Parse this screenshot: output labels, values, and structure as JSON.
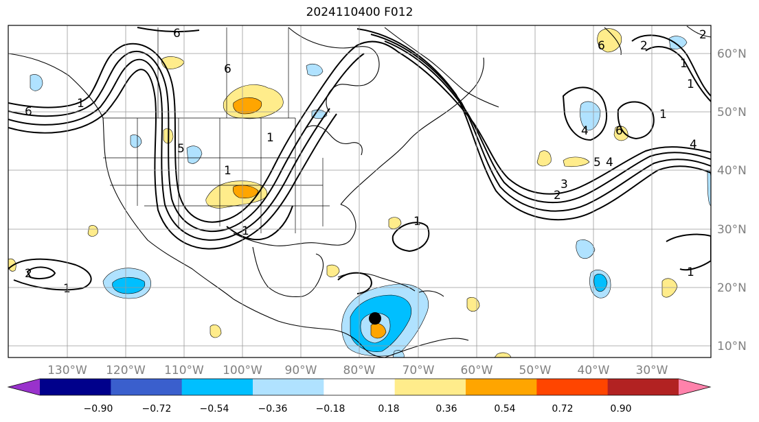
{
  "title": "2024110400 F012",
  "lat_labels": [
    "60°N",
    "50°N",
    "40°N",
    "30°N",
    "20°N",
    "10°N"
  ],
  "lon_labels": [
    "130°W",
    "120°W",
    "110°W",
    "100°W",
    "90°W",
    "80°W",
    "70°W",
    "60°W",
    "50°W",
    "40°W",
    "30°W"
  ],
  "colorbar": {
    "colors": [
      "#9932CC",
      "#00008B",
      "#3A5FCD",
      "#00BFFF",
      "#B0E2FF",
      "#FFFFFF",
      "#FFEC8B",
      "#FFA500",
      "#FF4500",
      "#B22222",
      "#FF82AB"
    ],
    "ticks": [
      "−0.90",
      "−0.72",
      "−0.54",
      "−0.36",
      "−0.18",
      "0.18",
      "0.36",
      "0.54",
      "0.72",
      "0.90"
    ]
  },
  "contour_labels": [
    "6",
    "6",
    "6",
    "5",
    "1",
    "1",
    "1",
    "1",
    "2",
    "2",
    "1",
    "1",
    "1",
    "6",
    "5",
    "4",
    "3",
    "2",
    "1",
    "4",
    "6",
    "4",
    "1",
    "2",
    "1"
  ],
  "storm_marker": {
    "lat": 14.6,
    "lon": -77.0
  }
}
